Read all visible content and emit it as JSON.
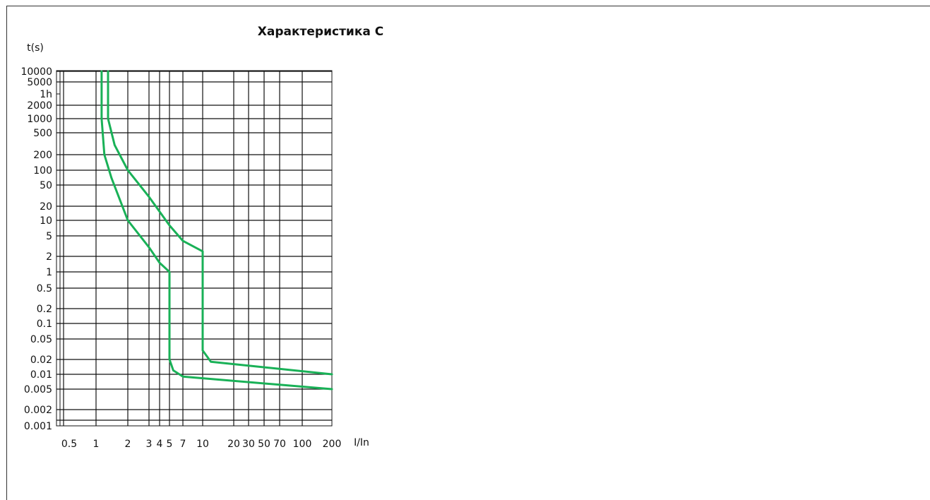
{
  "chart_data": {
    "type": "line",
    "title": "Характеристика C",
    "ylabel": "t(s)",
    "xlabel": "I/In",
    "y_ticks": [
      "10000",
      "5000",
      "1h",
      "2000",
      "1000",
      "500",
      "200",
      "100",
      "50",
      "20",
      "10",
      "5",
      "2",
      "1",
      "0.5",
      "0.2",
      "0.1",
      "0.05",
      "0.02",
      "0.01",
      "0.005",
      "0.002",
      "0.001"
    ],
    "x_ticks": [
      "0.5",
      "1",
      "2",
      "3",
      "4",
      "5",
      "7",
      "10",
      "20",
      "30",
      "50",
      "70",
      "100",
      "200"
    ],
    "y_scale": "log",
    "grid": true,
    "line_color": "#19b157",
    "series": [
      {
        "points": [
          [
            1.13,
            10000
          ],
          [
            1.13,
            1000
          ],
          [
            1.2,
            200
          ],
          [
            1.4,
            70
          ],
          [
            2,
            10
          ],
          [
            3,
            3
          ],
          [
            4,
            1.5
          ],
          [
            5,
            1
          ],
          [
            5,
            0.02
          ],
          [
            5.5,
            0.012
          ],
          [
            7,
            0.009
          ],
          [
            200,
            0.005
          ]
        ]
      },
      {
        "points": [
          [
            1.3,
            10000
          ],
          [
            1.3,
            1000
          ],
          [
            1.5,
            300
          ],
          [
            2,
            100
          ],
          [
            3,
            30
          ],
          [
            5,
            8
          ],
          [
            7,
            4
          ],
          [
            10,
            2.5
          ],
          [
            10,
            0.03
          ],
          [
            12,
            0.018
          ],
          [
            200,
            0.01
          ]
        ]
      }
    ]
  }
}
